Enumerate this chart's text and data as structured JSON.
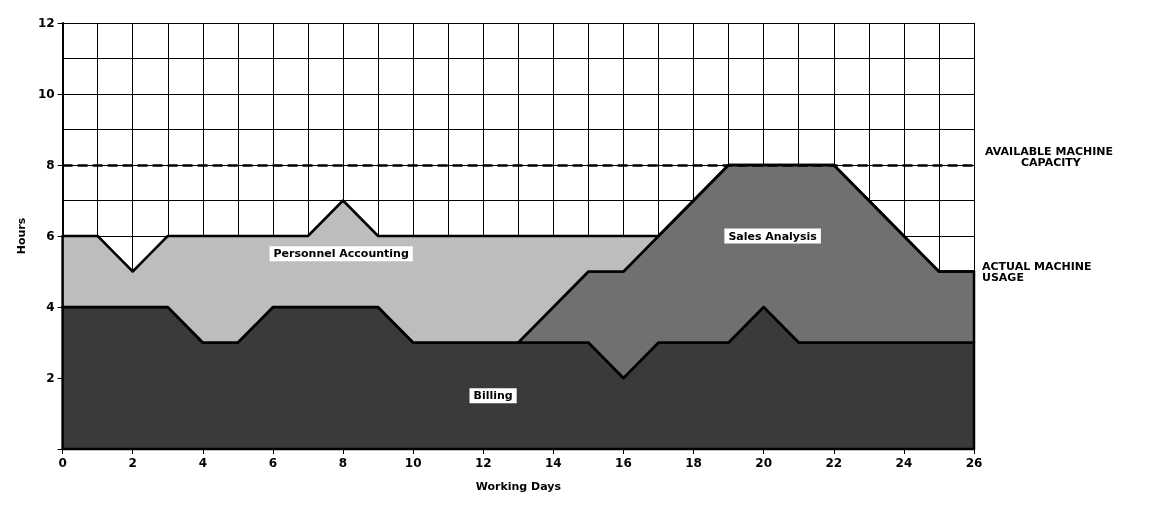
{
  "chart_data": {
    "type": "area",
    "stacked": true,
    "xlabel": "Working Days",
    "ylabel": "Hours",
    "x": [
      0,
      1,
      2,
      3,
      4,
      5,
      6,
      7,
      8,
      9,
      10,
      11,
      12,
      13,
      14,
      15,
      16,
      17,
      18,
      19,
      20,
      21,
      22,
      23,
      24,
      25,
      26
    ],
    "series": [
      {
        "name": "Billing",
        "color": "#3a3a3a",
        "values": [
          4,
          4,
          4,
          4,
          3,
          3,
          4,
          4,
          4,
          4,
          3,
          3,
          3,
          3,
          3,
          3,
          2,
          3,
          3,
          3,
          4,
          3,
          3,
          3,
          3,
          3,
          3
        ]
      },
      {
        "name": "Sales Analysis",
        "color": "#707070",
        "values": [
          0,
          0,
          0,
          0,
          0,
          0,
          0,
          0,
          0,
          0,
          0,
          0,
          0,
          0,
          1,
          2,
          3,
          3,
          4,
          5,
          4,
          5,
          5,
          4,
          3,
          2,
          2
        ]
      },
      {
        "name": "Personnel Accounting",
        "color": "#bdbdbd",
        "values": [
          2,
          2,
          1,
          2,
          3,
          3,
          2,
          2,
          3,
          2,
          3,
          3,
          3,
          3,
          2,
          1,
          1,
          0,
          0,
          0,
          0,
          0,
          0,
          0,
          0,
          0,
          0
        ]
      }
    ],
    "xlim": [
      0,
      26
    ],
    "xticks": [
      0,
      2,
      4,
      6,
      8,
      10,
      12,
      14,
      16,
      18,
      20,
      22,
      24,
      26
    ],
    "ylim": [
      0,
      12
    ],
    "yticks": [
      {
        "value": 0,
        "label": null
      },
      2,
      4,
      6,
      8,
      10,
      12
    ],
    "grid": true,
    "legend": false,
    "ref_lines": [
      {
        "axis": "y",
        "value": 8,
        "label": "AVAILABLE MACHINE CAPACITY",
        "line_style": "dashed",
        "color": "#000000"
      }
    ],
    "annotations": [
      {
        "text": "ACTUAL MACHINE USAGE",
        "x": 26,
        "y": 5
      }
    ]
  }
}
